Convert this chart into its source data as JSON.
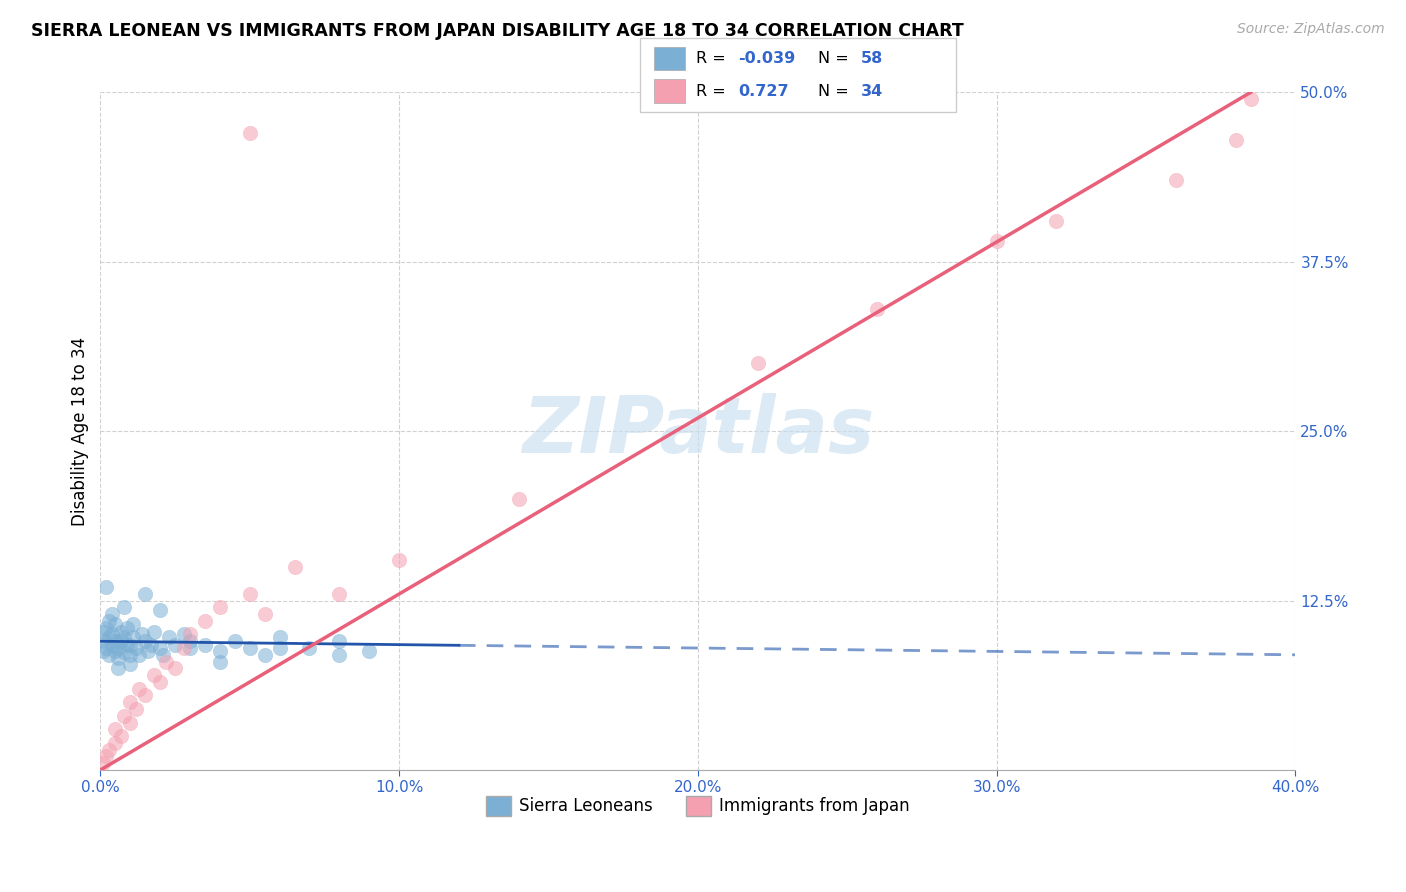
{
  "title": "SIERRA LEONEAN VS IMMIGRANTS FROM JAPAN DISABILITY AGE 18 TO 34 CORRELATION CHART",
  "source": "Source: ZipAtlas.com",
  "ylabel": "Disability Age 18 to 34",
  "x_min": 0.0,
  "x_max": 40.0,
  "y_min": 0.0,
  "y_max": 50.0,
  "x_ticks": [
    0.0,
    10.0,
    20.0,
    30.0,
    40.0
  ],
  "y_ticks": [
    0.0,
    12.5,
    25.0,
    37.5,
    50.0
  ],
  "x_tick_labels": [
    "0.0%",
    "10.0%",
    "20.0%",
    "30.0%",
    "40.0%"
  ],
  "y_tick_labels": [
    "",
    "12.5%",
    "25.0%",
    "37.5%",
    "50.0%"
  ],
  "blue_R": -0.039,
  "blue_N": 58,
  "pink_R": 0.727,
  "pink_N": 34,
  "blue_color": "#7BAFD4",
  "pink_color": "#F4A0B0",
  "blue_line_color": "#2255AA",
  "pink_line_color": "#E8607A",
  "watermark_color": "#C8DFF0",
  "legend_labels": [
    "Sierra Leoneans",
    "Immigrants from Japan"
  ],
  "blue_line_y0": 9.5,
  "blue_line_y1": 8.5,
  "pink_line_x0": 0.0,
  "pink_line_y0": 0.0,
  "pink_line_x1": 38.5,
  "pink_line_y1": 50.0,
  "sierra_x": [
    0.1,
    0.1,
    0.1,
    0.2,
    0.2,
    0.3,
    0.3,
    0.3,
    0.4,
    0.4,
    0.5,
    0.5,
    0.5,
    0.6,
    0.6,
    0.7,
    0.7,
    0.8,
    0.8,
    0.9,
    0.9,
    1.0,
    1.0,
    1.1,
    1.1,
    1.2,
    1.3,
    1.4,
    1.5,
    1.6,
    1.7,
    1.8,
    2.0,
    2.1,
    2.3,
    2.5,
    2.8,
    3.0,
    3.5,
    4.0,
    4.5,
    5.0,
    5.5,
    6.0,
    7.0,
    8.0,
    9.0,
    0.2,
    0.4,
    0.6,
    0.8,
    1.0,
    1.5,
    2.0,
    3.0,
    4.0,
    6.0,
    8.0
  ],
  "sierra_y": [
    9.5,
    10.2,
    8.8,
    9.0,
    10.5,
    8.5,
    9.8,
    11.0,
    9.2,
    10.0,
    8.8,
    9.5,
    10.8,
    9.0,
    8.3,
    9.5,
    10.2,
    8.7,
    9.8,
    9.2,
    10.5,
    8.5,
    9.2,
    9.8,
    10.8,
    9.0,
    8.5,
    10.0,
    9.5,
    8.8,
    9.2,
    10.2,
    9.0,
    8.5,
    9.8,
    9.2,
    10.0,
    9.5,
    9.2,
    8.8,
    9.5,
    9.0,
    8.5,
    9.8,
    9.0,
    9.5,
    8.8,
    13.5,
    11.5,
    7.5,
    12.0,
    7.8,
    13.0,
    11.8,
    9.0,
    8.0,
    9.0,
    8.5
  ],
  "japan_x": [
    0.1,
    0.2,
    0.3,
    0.5,
    0.5,
    0.7,
    0.8,
    1.0,
    1.0,
    1.2,
    1.3,
    1.5,
    1.8,
    2.0,
    2.2,
    2.5,
    2.8,
    3.0,
    3.5,
    4.0,
    5.0,
    5.5,
    6.5,
    8.0,
    10.0,
    14.0,
    22.0,
    26.0,
    30.0,
    32.0,
    36.0,
    38.0,
    5.0,
    38.5
  ],
  "japan_y": [
    0.5,
    1.0,
    1.5,
    2.0,
    3.0,
    2.5,
    4.0,
    3.5,
    5.0,
    4.5,
    6.0,
    5.5,
    7.0,
    6.5,
    8.0,
    7.5,
    9.0,
    10.0,
    11.0,
    12.0,
    13.0,
    11.5,
    15.0,
    13.0,
    15.5,
    20.0,
    30.0,
    34.0,
    39.0,
    40.5,
    43.5,
    46.5,
    47.0,
    49.5
  ]
}
